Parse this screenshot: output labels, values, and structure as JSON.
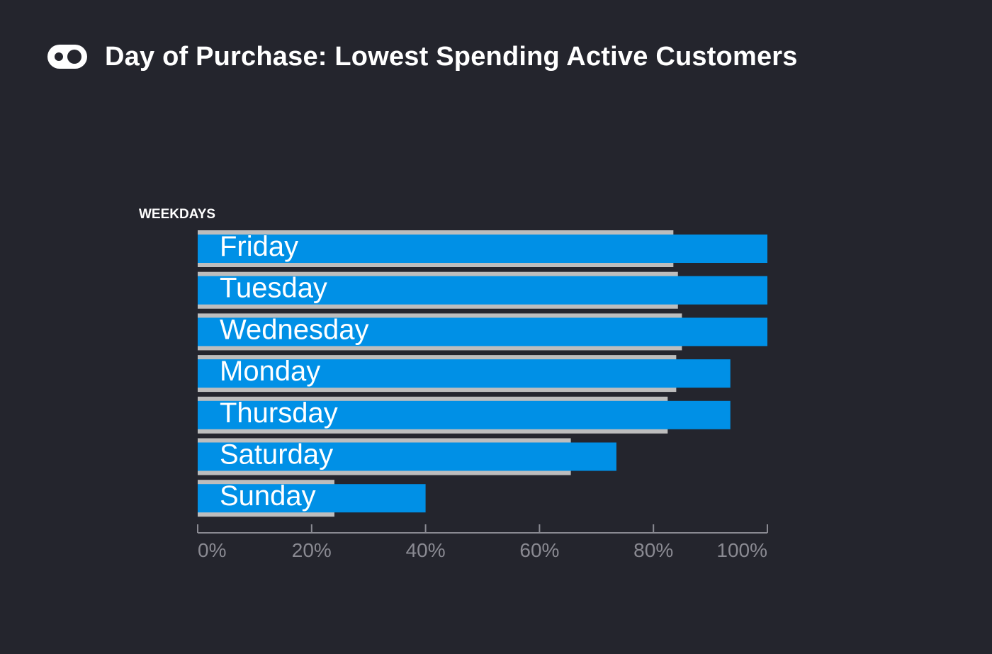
{
  "header": {
    "title": "Day of Purchase: Lowest Spending Active Customers",
    "icon": "logo-icon"
  },
  "colors": {
    "background": "#24252d",
    "primary_bar": "#0090e6",
    "comparison_bar": "#bdbdbd",
    "axis": "#8a8a92",
    "label": "#ffffff"
  },
  "chart_data": {
    "type": "bar",
    "orientation": "horizontal",
    "ylabel": "WEEKDAYS",
    "xlabel": "",
    "categories": [
      "Friday",
      "Tuesday",
      "Wednesday",
      "Monday",
      "Thursday",
      "Saturday",
      "Sunday"
    ],
    "series": [
      {
        "values": [
          100,
          100,
          100,
          93.5,
          93.5,
          73.5,
          40
        ]
      },
      {
        "values": [
          83.5,
          84.3,
          85,
          84,
          82.5,
          65.5,
          24
        ]
      }
    ],
    "xlim": [
      0,
      100
    ],
    "xticks": [
      "0%",
      "20%",
      "40%",
      "60%",
      "80%",
      "100%"
    ],
    "grid": false,
    "legend": "none"
  }
}
